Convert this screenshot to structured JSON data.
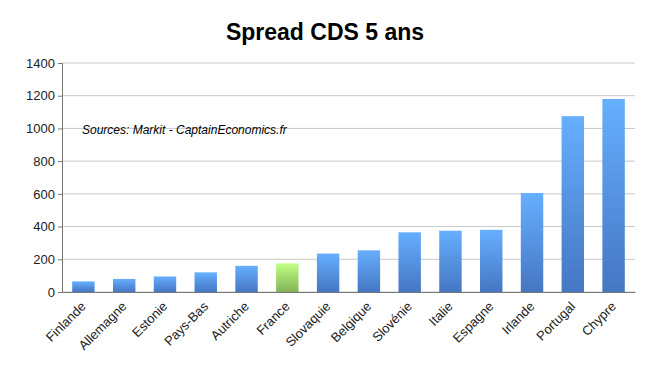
{
  "chart_data": {
    "type": "bar",
    "title": "Spread CDS 5 ans",
    "annotation": "Sources: Markit - CaptainEconomics.fr",
    "categories": [
      "Finlande",
      "Allemagne",
      "Estonie",
      "Pays-Bas",
      "Autriche",
      "France",
      "Slovaquie",
      "Belgique",
      "Slovénie",
      "Italie",
      "Espagne",
      "Irlande",
      "Portugal",
      "Chypre"
    ],
    "values": [
      65,
      80,
      95,
      120,
      160,
      175,
      235,
      255,
      365,
      375,
      380,
      605,
      1075,
      1180
    ],
    "colors": [
      "#4a7fd0",
      "#4a7fd0",
      "#4a7fd0",
      "#4a7fd0",
      "#4a7fd0",
      "#8dc15f",
      "#4a7fd0",
      "#4a7fd0",
      "#4a7fd0",
      "#4a7fd0",
      "#4a7fd0",
      "#4a7fd0",
      "#4a7fd0",
      "#4a7fd0"
    ],
    "ylim": [
      0,
      1400
    ],
    "yticks": [
      0,
      200,
      400,
      600,
      800,
      1000,
      1200,
      1400
    ],
    "grid": true
  }
}
